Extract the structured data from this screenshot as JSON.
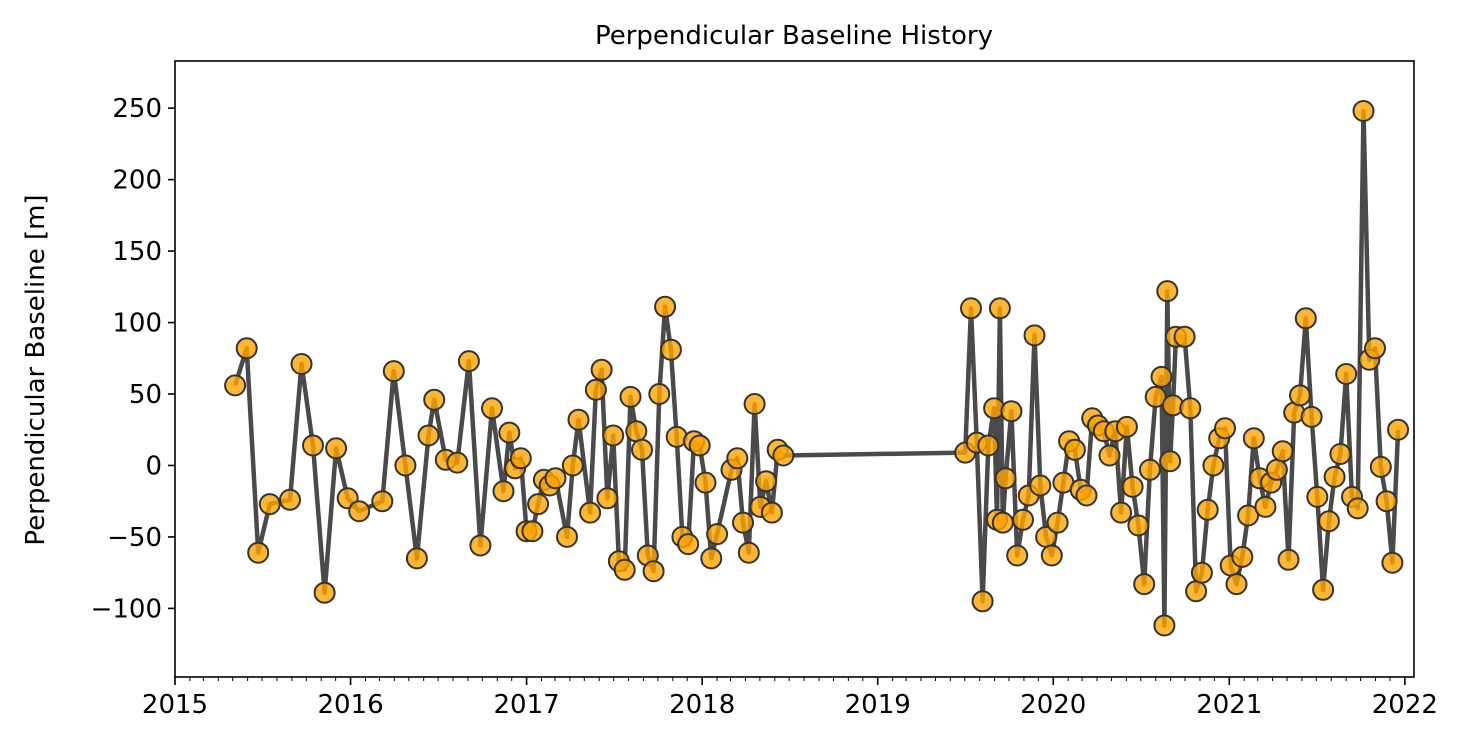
{
  "chart_data": {
    "type": "line",
    "title": "Perpendicular Baseline History",
    "xlabel": "",
    "ylabel": "Perpendicular Baseline [m]",
    "xlim": [
      "2015-01-01",
      "2022-01-20"
    ],
    "ylim": [
      -148,
      283
    ],
    "x_tick_labels": [
      "2015",
      "2016",
      "2017",
      "2018",
      "2019",
      "2020",
      "2021",
      "2022"
    ],
    "y_tick_values": [
      -100,
      -50,
      0,
      50,
      100,
      150,
      200,
      250
    ],
    "y_tick_labels": [
      "−100",
      "−50",
      "0",
      "50",
      "100",
      "150",
      "200",
      "250"
    ],
    "grid": false,
    "line_color": "#4a4a4a",
    "marker_color": "#ffa500",
    "series": [
      {
        "points": [
          [
            "2015-05-06",
            56
          ],
          [
            "2015-05-30",
            82
          ],
          [
            "2015-06-23",
            -61
          ],
          [
            "2015-07-17",
            -27
          ],
          [
            "2015-08-28",
            -24
          ],
          [
            "2015-09-21",
            71
          ],
          [
            "2015-10-15",
            14
          ],
          [
            "2015-11-08",
            -89
          ],
          [
            "2015-12-02",
            12
          ],
          [
            "2015-12-26",
            -23
          ],
          [
            "2016-01-19",
            -32
          ],
          [
            "2016-03-07",
            -25
          ],
          [
            "2016-03-31",
            66
          ],
          [
            "2016-04-24",
            0
          ],
          [
            "2016-05-18",
            -65
          ],
          [
            "2016-06-11",
            21
          ],
          [
            "2016-06-23",
            46
          ],
          [
            "2016-07-17",
            4
          ],
          [
            "2016-08-10",
            2
          ],
          [
            "2016-09-03",
            73
          ],
          [
            "2016-09-27",
            -56
          ],
          [
            "2016-10-21",
            40
          ],
          [
            "2016-11-14",
            -18
          ],
          [
            "2016-11-26",
            23
          ],
          [
            "2016-12-08",
            -2
          ],
          [
            "2016-12-20",
            5
          ],
          [
            "2017-01-01",
            -46
          ],
          [
            "2017-01-13",
            -46
          ],
          [
            "2017-01-25",
            -27
          ],
          [
            "2017-02-06",
            -10
          ],
          [
            "2017-02-18",
            -14
          ],
          [
            "2017-03-02",
            -9
          ],
          [
            "2017-03-26",
            -50
          ],
          [
            "2017-04-07",
            0
          ],
          [
            "2017-04-19",
            32
          ],
          [
            "2017-05-13",
            -33
          ],
          [
            "2017-05-25",
            53
          ],
          [
            "2017-06-06",
            67
          ],
          [
            "2017-06-18",
            -23
          ],
          [
            "2017-06-30",
            21
          ],
          [
            "2017-07-12",
            -67
          ],
          [
            "2017-07-24",
            -73
          ],
          [
            "2017-08-05",
            48
          ],
          [
            "2017-08-17",
            24
          ],
          [
            "2017-08-29",
            11
          ],
          [
            "2017-09-10",
            -63
          ],
          [
            "2017-09-22",
            -74
          ],
          [
            "2017-10-04",
            50
          ],
          [
            "2017-10-16",
            111
          ],
          [
            "2017-10-28",
            81
          ],
          [
            "2017-11-09",
            20
          ],
          [
            "2017-11-21",
            -50
          ],
          [
            "2017-12-03",
            -55
          ],
          [
            "2017-12-15",
            17
          ],
          [
            "2017-12-27",
            14
          ],
          [
            "2018-01-08",
            -12
          ],
          [
            "2018-01-20",
            -65
          ],
          [
            "2018-02-01",
            -48
          ],
          [
            "2018-03-03",
            -3
          ],
          [
            "2018-03-15",
            5
          ],
          [
            "2018-03-27",
            -40
          ],
          [
            "2018-04-08",
            -61
          ],
          [
            "2018-04-20",
            43
          ],
          [
            "2018-05-02",
            -29
          ],
          [
            "2018-05-14",
            -11
          ],
          [
            "2018-05-26",
            -33
          ],
          [
            "2018-06-07",
            11
          ],
          [
            "2018-06-19",
            7
          ],
          [
            "2019-07-02",
            9
          ],
          [
            "2019-07-14",
            110
          ],
          [
            "2019-07-26",
            16
          ],
          [
            "2019-08-07",
            -95
          ],
          [
            "2019-08-19",
            14
          ],
          [
            "2019-08-31",
            40
          ],
          [
            "2019-09-06",
            -38
          ],
          [
            "2019-09-12",
            110
          ],
          [
            "2019-09-18",
            -40
          ],
          [
            "2019-09-24",
            -9
          ],
          [
            "2019-10-06",
            38
          ],
          [
            "2019-10-18",
            -63
          ],
          [
            "2019-10-30",
            -38
          ],
          [
            "2019-11-11",
            -21
          ],
          [
            "2019-11-23",
            91
          ],
          [
            "2019-12-05",
            -14
          ],
          [
            "2019-12-17",
            -50
          ],
          [
            "2019-12-29",
            -63
          ],
          [
            "2020-01-10",
            -40
          ],
          [
            "2020-01-22",
            -12
          ],
          [
            "2020-02-03",
            17
          ],
          [
            "2020-02-15",
            11
          ],
          [
            "2020-02-27",
            -17
          ],
          [
            "2020-03-10",
            -21
          ],
          [
            "2020-03-22",
            33
          ],
          [
            "2020-04-03",
            28
          ],
          [
            "2020-04-15",
            24
          ],
          [
            "2020-04-27",
            7
          ],
          [
            "2020-05-09",
            24
          ],
          [
            "2020-05-21",
            -33
          ],
          [
            "2020-06-02",
            27
          ],
          [
            "2020-06-14",
            -15
          ],
          [
            "2020-06-26",
            -42
          ],
          [
            "2020-07-08",
            -83
          ],
          [
            "2020-07-20",
            -3
          ],
          [
            "2020-08-01",
            48
          ],
          [
            "2020-08-13",
            62
          ],
          [
            "2020-08-19",
            -112
          ],
          [
            "2020-08-25",
            122
          ],
          [
            "2020-08-31",
            3
          ],
          [
            "2020-09-06",
            42
          ],
          [
            "2020-09-12",
            90
          ],
          [
            "2020-09-30",
            90
          ],
          [
            "2020-10-12",
            40
          ],
          [
            "2020-10-24",
            -88
          ],
          [
            "2020-11-05",
            -75
          ],
          [
            "2020-11-17",
            -31
          ],
          [
            "2020-11-29",
            0
          ],
          [
            "2020-12-11",
            19
          ],
          [
            "2020-12-23",
            26
          ],
          [
            "2021-01-04",
            -70
          ],
          [
            "2021-01-16",
            -83
          ],
          [
            "2021-01-28",
            -64
          ],
          [
            "2021-02-09",
            -35
          ],
          [
            "2021-02-21",
            19
          ],
          [
            "2021-03-05",
            -9
          ],
          [
            "2021-03-17",
            -29
          ],
          [
            "2021-03-29",
            -12
          ],
          [
            "2021-04-10",
            -3
          ],
          [
            "2021-04-22",
            10
          ],
          [
            "2021-05-04",
            -66
          ],
          [
            "2021-05-16",
            37
          ],
          [
            "2021-05-28",
            49
          ],
          [
            "2021-06-09",
            103
          ],
          [
            "2021-06-21",
            34
          ],
          [
            "2021-07-03",
            -22
          ],
          [
            "2021-07-15",
            -87
          ],
          [
            "2021-07-27",
            -39
          ],
          [
            "2021-08-08",
            -8
          ],
          [
            "2021-08-20",
            8
          ],
          [
            "2021-09-01",
            64
          ],
          [
            "2021-09-13",
            -22
          ],
          [
            "2021-09-25",
            -30
          ],
          [
            "2021-10-07",
            248
          ],
          [
            "2021-10-19",
            74
          ],
          [
            "2021-10-31",
            82
          ],
          [
            "2021-11-12",
            -1
          ],
          [
            "2021-11-24",
            -25
          ],
          [
            "2021-12-06",
            -68
          ],
          [
            "2021-12-18",
            25
          ]
        ]
      }
    ]
  }
}
